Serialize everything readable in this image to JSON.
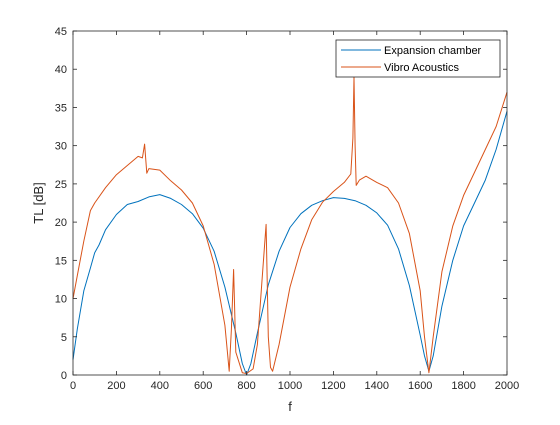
{
  "chart_data": {
    "type": "line",
    "title": "",
    "xlabel": "f",
    "ylabel": "TL [dB]",
    "xlim": [
      0,
      2000
    ],
    "ylim": [
      0,
      45
    ],
    "xticks": [
      0,
      200,
      400,
      600,
      800,
      1000,
      1200,
      1400,
      1600,
      1800,
      2000
    ],
    "yticks": [
      0,
      5,
      10,
      15,
      20,
      25,
      30,
      35,
      40,
      45
    ],
    "grid": false,
    "legend_position": "top-right",
    "colors": {
      "axis": "#262626",
      "series1": "#0072BD",
      "series2": "#D95319"
    },
    "series": [
      {
        "name": "Expansion chamber",
        "color": "#0072BD",
        "x": [
          0,
          20,
          50,
          80,
          100,
          120,
          150,
          200,
          250,
          300,
          350,
          400,
          450,
          500,
          550,
          600,
          650,
          700,
          750,
          780,
          800,
          820,
          850,
          900,
          950,
          1000,
          1050,
          1100,
          1150,
          1200,
          1250,
          1300,
          1350,
          1400,
          1450,
          1500,
          1550,
          1600,
          1620,
          1640,
          1660,
          1700,
          1750,
          1800,
          1850,
          1900,
          1950,
          2000
        ],
        "y": [
          2,
          6,
          11,
          14,
          16,
          17,
          19,
          21,
          22.3,
          22.7,
          23.3,
          23.6,
          23.1,
          22.3,
          21.1,
          19.2,
          16.2,
          11.5,
          5.5,
          1.5,
          0,
          1.5,
          5.5,
          11.8,
          16.2,
          19.3,
          21.1,
          22.2,
          22.8,
          23.2,
          23.1,
          22.8,
          22.2,
          21.2,
          19.6,
          16.5,
          11.7,
          5.2,
          2.5,
          0.5,
          2.5,
          9,
          15,
          19.5,
          22.5,
          25.5,
          29.5,
          34.5
        ]
      },
      {
        "name": "Vibro Acoustics",
        "color": "#D95319",
        "x": [
          0,
          20,
          50,
          80,
          100,
          150,
          200,
          250,
          300,
          320,
          330,
          340,
          350,
          400,
          450,
          500,
          550,
          600,
          650,
          700,
          720,
          730,
          740,
          750,
          780,
          800,
          830,
          850,
          870,
          890,
          900,
          910,
          920,
          950,
          1000,
          1050,
          1100,
          1150,
          1200,
          1250,
          1280,
          1290,
          1295,
          1300,
          1305,
          1320,
          1350,
          1400,
          1450,
          1500,
          1550,
          1600,
          1620,
          1640,
          1660,
          1700,
          1750,
          1800,
          1850,
          1900,
          1950,
          2000
        ],
        "y": [
          10,
          13,
          17.5,
          21.5,
          22.5,
          24.5,
          26.2,
          27.4,
          28.6,
          28.4,
          30.2,
          26.4,
          27,
          26.8,
          25.4,
          24.2,
          22.5,
          19.5,
          14.5,
          6.5,
          0.5,
          6,
          13.8,
          3,
          0.3,
          0.2,
          0.8,
          4,
          12,
          19.7,
          5,
          1,
          0.5,
          4,
          11.5,
          16.5,
          20.3,
          22.6,
          24,
          25.2,
          26.3,
          31,
          39,
          30,
          24.8,
          25.5,
          26,
          25.2,
          24.5,
          22.5,
          18.5,
          11,
          5,
          0.3,
          5,
          13.5,
          19.5,
          23.5,
          26.5,
          29.5,
          32.5,
          37
        ]
      }
    ]
  }
}
